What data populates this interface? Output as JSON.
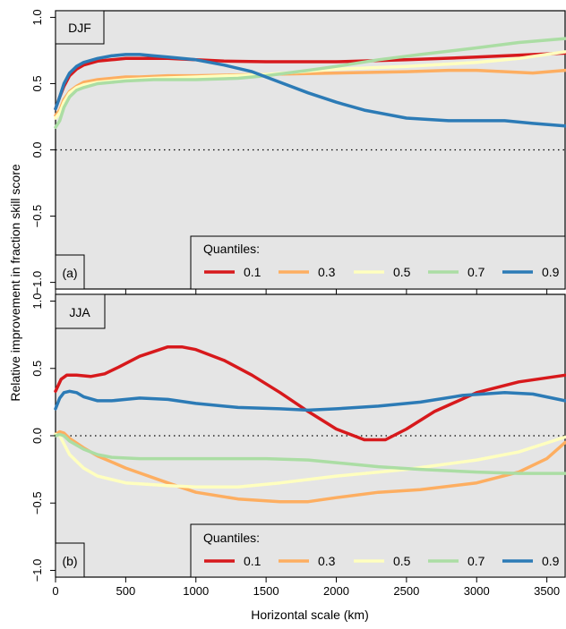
{
  "figure": {
    "ylabel": "Relative improvement in fraction skill score",
    "xlabel": "Horizontal scale (km)",
    "legend_title": "Quantiles:"
  },
  "chart_data": [
    {
      "type": "line",
      "panel_tag": "(a)",
      "season": "DJF",
      "xlim": [
        0,
        3630
      ],
      "ylim": [
        -1.05,
        1.05
      ],
      "x_ticks": [
        0,
        500,
        1000,
        1500,
        2000,
        2500,
        3000,
        3500
      ],
      "y_ticks": [
        -1.0,
        -0.5,
        0.0,
        0.5,
        1.0
      ],
      "y_tick_labels": [
        "−1.0",
        "−0.5",
        "0.0",
        "0.5",
        "1.0"
      ],
      "reference_line": 0,
      "grid": false,
      "legend_position": "bottom-right",
      "series": [
        {
          "name": "0.1",
          "color": "#d7191c",
          "x": [
            0,
            30,
            60,
            100,
            150,
            200,
            300,
            400,
            500,
            600,
            700,
            800,
            1000,
            1200,
            1500,
            2000,
            2500,
            3000,
            3630
          ],
          "y": [
            0.31,
            0.4,
            0.48,
            0.56,
            0.61,
            0.64,
            0.67,
            0.68,
            0.69,
            0.69,
            0.69,
            0.69,
            0.68,
            0.67,
            0.665,
            0.665,
            0.68,
            0.7,
            0.73
          ]
        },
        {
          "name": "0.3",
          "color": "#fdae61",
          "x": [
            0,
            30,
            60,
            100,
            150,
            200,
            300,
            400,
            500,
            600,
            800,
            1000,
            1500,
            2000,
            2500,
            2800,
            3000,
            3200,
            3400,
            3630
          ],
          "y": [
            0.26,
            0.3,
            0.38,
            0.44,
            0.48,
            0.51,
            0.53,
            0.54,
            0.55,
            0.55,
            0.56,
            0.56,
            0.57,
            0.58,
            0.59,
            0.6,
            0.6,
            0.59,
            0.58,
            0.6
          ]
        },
        {
          "name": "0.5",
          "color": "#ffffbf",
          "x": [
            0,
            30,
            60,
            100,
            150,
            200,
            300,
            400,
            500,
            700,
            1000,
            1500,
            2000,
            2500,
            3000,
            3300,
            3630
          ],
          "y": [
            0.24,
            0.28,
            0.36,
            0.43,
            0.47,
            0.49,
            0.51,
            0.52,
            0.53,
            0.54,
            0.55,
            0.57,
            0.61,
            0.63,
            0.66,
            0.69,
            0.74
          ]
        },
        {
          "name": "0.7",
          "color": "#abdda4",
          "x": [
            0,
            30,
            60,
            100,
            150,
            200,
            300,
            400,
            500,
            700,
            1000,
            1300,
            1500,
            1800,
            2000,
            2300,
            2600,
            3000,
            3300,
            3630
          ],
          "y": [
            0.17,
            0.22,
            0.32,
            0.4,
            0.45,
            0.47,
            0.5,
            0.51,
            0.52,
            0.53,
            0.53,
            0.54,
            0.56,
            0.6,
            0.63,
            0.68,
            0.72,
            0.77,
            0.81,
            0.84
          ]
        },
        {
          "name": "0.9",
          "color": "#2c7bb6",
          "x": [
            0,
            30,
            60,
            100,
            150,
            200,
            300,
            400,
            500,
            600,
            700,
            800,
            1000,
            1200,
            1400,
            1600,
            1800,
            2000,
            2200,
            2500,
            2800,
            3000,
            3200,
            3400,
            3630
          ],
          "y": [
            0.31,
            0.4,
            0.5,
            0.58,
            0.63,
            0.66,
            0.69,
            0.71,
            0.72,
            0.72,
            0.71,
            0.7,
            0.68,
            0.64,
            0.59,
            0.51,
            0.43,
            0.36,
            0.3,
            0.24,
            0.22,
            0.22,
            0.22,
            0.2,
            0.18
          ]
        }
      ]
    },
    {
      "type": "line",
      "panel_tag": "(b)",
      "season": "JJA",
      "xlim": [
        0,
        3630
      ],
      "ylim": [
        -1.05,
        1.05
      ],
      "x_ticks": [
        0,
        500,
        1000,
        1500,
        2000,
        2500,
        3000,
        3500
      ],
      "x_tick_labels": [
        "0",
        "500",
        "1000",
        "1500",
        "2000",
        "2500",
        "3000",
        "3500"
      ],
      "y_ticks": [
        -1.0,
        -0.5,
        0.0,
        0.5,
        1.0
      ],
      "y_tick_labels": [
        "−1.0",
        "−0.5",
        "0.0",
        "0.5",
        "1.0"
      ],
      "reference_line": 0,
      "grid": false,
      "legend_position": "bottom-right",
      "series": [
        {
          "name": "0.1",
          "color": "#d7191c",
          "x": [
            0,
            40,
            80,
            150,
            250,
            350,
            450,
            600,
            800,
            900,
            1000,
            1200,
            1400,
            1600,
            1800,
            2000,
            2200,
            2350,
            2500,
            2700,
            3000,
            3300,
            3630
          ],
          "y": [
            0.33,
            0.42,
            0.45,
            0.45,
            0.44,
            0.46,
            0.51,
            0.59,
            0.66,
            0.66,
            0.64,
            0.56,
            0.45,
            0.32,
            0.18,
            0.05,
            -0.03,
            -0.03,
            0.05,
            0.18,
            0.32,
            0.4,
            0.45
          ]
        },
        {
          "name": "0.3",
          "color": "#fdae61",
          "x": [
            0,
            30,
            60,
            100,
            200,
            300,
            500,
            800,
            1000,
            1300,
            1600,
            1800,
            2000,
            2300,
            2600,
            3000,
            3300,
            3500,
            3630
          ],
          "y": [
            0.01,
            0.03,
            0.02,
            -0.02,
            -0.09,
            -0.15,
            -0.24,
            -0.35,
            -0.42,
            -0.47,
            -0.49,
            -0.49,
            -0.46,
            -0.42,
            -0.4,
            -0.35,
            -0.27,
            -0.17,
            -0.05
          ]
        },
        {
          "name": "0.5",
          "color": "#ffffbf",
          "x": [
            0,
            30,
            60,
            100,
            200,
            300,
            500,
            800,
            1000,
            1300,
            1600,
            2000,
            2500,
            3000,
            3300,
            3630
          ],
          "y": [
            0.01,
            0.0,
            -0.06,
            -0.14,
            -0.24,
            -0.3,
            -0.35,
            -0.37,
            -0.38,
            -0.38,
            -0.35,
            -0.3,
            -0.25,
            -0.18,
            -0.12,
            -0.01
          ]
        },
        {
          "name": "0.7",
          "color": "#abdda4",
          "x": [
            0,
            30,
            60,
            100,
            200,
            300,
            400,
            600,
            1000,
            1500,
            1800,
            2000,
            2300,
            2600,
            3000,
            3300,
            3630
          ],
          "y": [
            0.0,
            0.01,
            0.0,
            -0.04,
            -0.1,
            -0.14,
            -0.16,
            -0.17,
            -0.17,
            -0.17,
            -0.18,
            -0.2,
            -0.23,
            -0.25,
            -0.27,
            -0.28,
            -0.28
          ]
        },
        {
          "name": "0.9",
          "color": "#2c7bb6",
          "x": [
            0,
            30,
            60,
            100,
            150,
            200,
            300,
            400,
            500,
            600,
            800,
            1000,
            1300,
            1600,
            1800,
            2000,
            2300,
            2600,
            2900,
            3200,
            3400,
            3630
          ],
          "y": [
            0.2,
            0.28,
            0.32,
            0.33,
            0.32,
            0.29,
            0.26,
            0.26,
            0.27,
            0.28,
            0.27,
            0.24,
            0.21,
            0.2,
            0.19,
            0.2,
            0.22,
            0.25,
            0.3,
            0.32,
            0.31,
            0.26
          ]
        }
      ]
    }
  ]
}
